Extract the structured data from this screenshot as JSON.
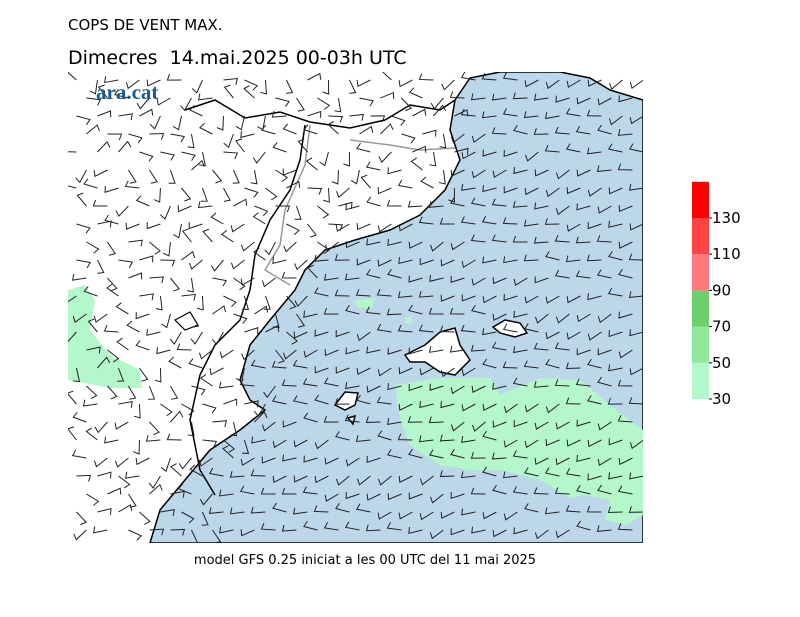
{
  "header": {
    "title": "COPS DE VENT MAX.",
    "subtitle": "Dimecres  14.mai.2025 00-03h UTC",
    "logo": "ara.cat"
  },
  "legend": {
    "ticks": [
      30,
      50,
      70,
      90,
      110,
      130
    ],
    "colors": [
      "#b3f7cb",
      "#90e89c",
      "#6dcf6d",
      "#ff7b7b",
      "#ff4444",
      "#ff0000"
    ]
  },
  "footer": "model GFS 0.25 iniciat a les 00 UTC del 11 mai 2025"
}
